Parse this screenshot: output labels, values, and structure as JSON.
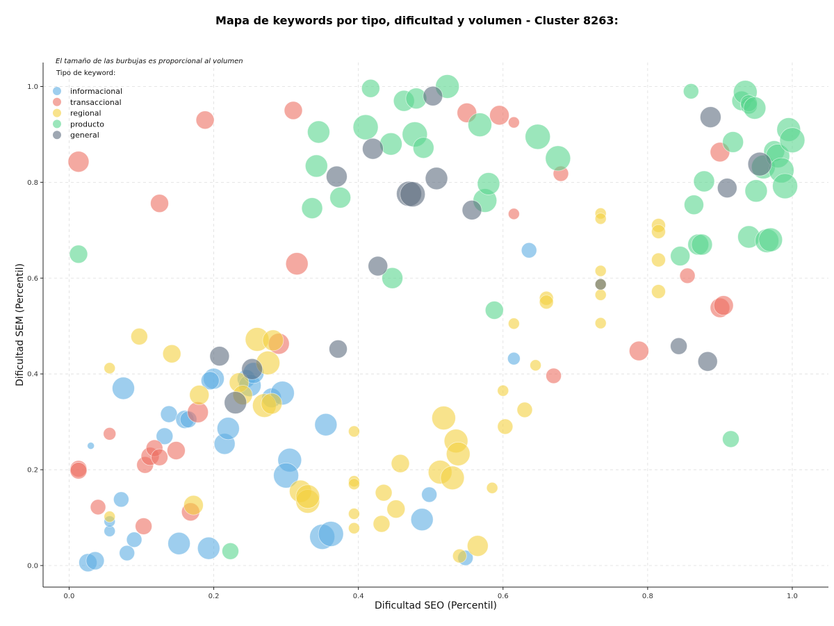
{
  "chart_data": {
    "type": "scatter",
    "title": "Mapa de keywords por tipo, dificultad y volumen - Cluster 8263:",
    "xlabel": "Dificultad SEO (Percentil)",
    "ylabel": "Dificultad SEM (Percentil)",
    "xlim": [
      -0.036,
      1.05
    ],
    "ylim": [
      -0.045,
      1.05
    ],
    "x_ticks": [
      0.0,
      0.2,
      0.4,
      0.6,
      0.8,
      1.0
    ],
    "y_ticks": [
      0.0,
      0.2,
      0.4,
      0.6,
      0.8,
      1.0
    ],
    "x_tick_labels": [
      "0.0",
      "0.2",
      "0.4",
      "0.6",
      "0.8",
      "1.0"
    ],
    "y_tick_labels": [
      "0.0",
      "0.2",
      "0.4",
      "0.6",
      "0.8",
      "1.0"
    ],
    "grid": true,
    "annotation": "El tamaño de las burbujas es proporcional al volumen",
    "legend_title": "Tipo de keyword:",
    "legend_position": "top-left",
    "series": [
      {
        "name": "informacional",
        "color": "#5DADE2",
        "points": [
          [
            0.03,
            0.25,
            5
          ],
          [
            0.075,
            0.37,
            16
          ],
          [
            0.072,
            0.138,
            11
          ],
          [
            0.056,
            0.072,
            8
          ],
          [
            0.056,
            0.092,
            8
          ],
          [
            0.09,
            0.054,
            11
          ],
          [
            0.08,
            0.026,
            11
          ],
          [
            0.026,
            0.006,
            13
          ],
          [
            0.036,
            0.01,
            13
          ],
          [
            0.138,
            0.316,
            12
          ],
          [
            0.132,
            0.27,
            12
          ],
          [
            0.16,
            0.305,
            13
          ],
          [
            0.165,
            0.305,
            12
          ],
          [
            0.2,
            0.39,
            15
          ],
          [
            0.195,
            0.386,
            13
          ],
          [
            0.215,
            0.254,
            15
          ],
          [
            0.22,
            0.286,
            16
          ],
          [
            0.245,
            0.39,
            13
          ],
          [
            0.25,
            0.376,
            16
          ],
          [
            0.255,
            0.402,
            15
          ],
          [
            0.28,
            0.35,
            14
          ],
          [
            0.295,
            0.36,
            17
          ],
          [
            0.305,
            0.22,
            17
          ],
          [
            0.3,
            0.188,
            18
          ],
          [
            0.355,
            0.294,
            16
          ],
          [
            0.35,
            0.06,
            18
          ],
          [
            0.362,
            0.066,
            18
          ],
          [
            0.152,
            0.046,
            16
          ],
          [
            0.193,
            0.036,
            16
          ],
          [
            0.488,
            0.096,
            16
          ],
          [
            0.498,
            0.148,
            11
          ],
          [
            0.548,
            0.016,
            11
          ],
          [
            0.615,
            0.432,
            9
          ],
          [
            0.636,
            0.658,
            11
          ]
        ]
      },
      {
        "name": "transaccional",
        "color": "#EC7063",
        "points": [
          [
            0.013,
            0.843,
            15
          ],
          [
            0.013,
            0.202,
            12
          ],
          [
            0.013,
            0.198,
            12
          ],
          [
            0.04,
            0.122,
            11
          ],
          [
            0.056,
            0.275,
            9
          ],
          [
            0.103,
            0.082,
            12
          ],
          [
            0.105,
            0.21,
            12
          ],
          [
            0.112,
            0.228,
            13
          ],
          [
            0.118,
            0.245,
            12
          ],
          [
            0.125,
            0.226,
            12
          ],
          [
            0.148,
            0.24,
            13
          ],
          [
            0.125,
            0.756,
            13
          ],
          [
            0.188,
            0.93,
            13
          ],
          [
            0.168,
            0.112,
            13
          ],
          [
            0.178,
            0.32,
            15
          ],
          [
            0.29,
            0.463,
            15
          ],
          [
            0.31,
            0.95,
            13
          ],
          [
            0.315,
            0.63,
            16
          ],
          [
            0.55,
            0.945,
            14
          ],
          [
            0.595,
            0.94,
            14
          ],
          [
            0.615,
            0.925,
            8
          ],
          [
            0.615,
            0.734,
            8
          ],
          [
            0.68,
            0.818,
            11
          ],
          [
            0.67,
            0.396,
            11
          ],
          [
            0.788,
            0.448,
            14
          ],
          [
            0.855,
            0.605,
            11
          ],
          [
            0.9,
            0.538,
            14
          ],
          [
            0.905,
            0.543,
            14
          ],
          [
            0.9,
            0.863,
            14
          ]
        ]
      },
      {
        "name": "regional",
        "color": "#F4D03F",
        "points": [
          [
            0.056,
            0.412,
            8
          ],
          [
            0.056,
            0.102,
            8
          ],
          [
            0.097,
            0.478,
            12
          ],
          [
            0.142,
            0.442,
            13
          ],
          [
            0.18,
            0.356,
            14
          ],
          [
            0.172,
            0.126,
            14
          ],
          [
            0.235,
            0.382,
            14
          ],
          [
            0.24,
            0.356,
            14
          ],
          [
            0.26,
            0.472,
            17
          ],
          [
            0.275,
            0.423,
            17
          ],
          [
            0.27,
            0.334,
            17
          ],
          [
            0.28,
            0.338,
            15
          ],
          [
            0.282,
            0.47,
            15
          ],
          [
            0.32,
            0.155,
            16
          ],
          [
            0.33,
            0.134,
            17
          ],
          [
            0.33,
            0.144,
            17
          ],
          [
            0.394,
            0.28,
            8
          ],
          [
            0.394,
            0.176,
            8
          ],
          [
            0.394,
            0.17,
            8
          ],
          [
            0.394,
            0.108,
            8
          ],
          [
            0.394,
            0.078,
            8
          ],
          [
            0.435,
            0.152,
            12
          ],
          [
            0.432,
            0.087,
            12
          ],
          [
            0.452,
            0.118,
            13
          ],
          [
            0.458,
            0.213,
            13
          ],
          [
            0.518,
            0.308,
            17
          ],
          [
            0.513,
            0.195,
            17
          ],
          [
            0.53,
            0.183,
            17
          ],
          [
            0.535,
            0.26,
            17
          ],
          [
            0.538,
            0.233,
            17
          ],
          [
            0.54,
            0.02,
            10
          ],
          [
            0.565,
            0.041,
            15
          ],
          [
            0.585,
            0.162,
            8
          ],
          [
            0.6,
            0.365,
            8
          ],
          [
            0.603,
            0.29,
            11
          ],
          [
            0.615,
            0.505,
            8
          ],
          [
            0.63,
            0.325,
            11
          ],
          [
            0.645,
            0.418,
            8
          ],
          [
            0.66,
            0.558,
            10
          ],
          [
            0.66,
            0.55,
            10
          ],
          [
            0.735,
            0.735,
            8
          ],
          [
            0.735,
            0.724,
            8
          ],
          [
            0.735,
            0.615,
            8
          ],
          [
            0.735,
            0.587,
            8
          ],
          [
            0.735,
            0.565,
            8
          ],
          [
            0.735,
            0.506,
            8
          ],
          [
            0.815,
            0.71,
            10
          ],
          [
            0.815,
            0.697,
            10
          ],
          [
            0.815,
            0.638,
            10
          ],
          [
            0.815,
            0.572,
            10
          ]
        ]
      },
      {
        "name": "producto",
        "color": "#58D68D",
        "points": [
          [
            0.013,
            0.65,
            13
          ],
          [
            0.223,
            0.03,
            12
          ],
          [
            0.336,
            0.746,
            15
          ],
          [
            0.342,
            0.834,
            16
          ],
          [
            0.345,
            0.905,
            16
          ],
          [
            0.375,
            0.768,
            15
          ],
          [
            0.41,
            0.915,
            18
          ],
          [
            0.417,
            0.996,
            13
          ],
          [
            0.445,
            0.88,
            16
          ],
          [
            0.447,
            0.6,
            15
          ],
          [
            0.463,
            0.97,
            15
          ],
          [
            0.48,
            0.975,
            15
          ],
          [
            0.478,
            0.9,
            18
          ],
          [
            0.49,
            0.872,
            15
          ],
          [
            0.523,
            1.0,
            17
          ],
          [
            0.568,
            0.92,
            17
          ],
          [
            0.575,
            0.762,
            17
          ],
          [
            0.58,
            0.797,
            16
          ],
          [
            0.588,
            0.533,
            13
          ],
          [
            0.648,
            0.895,
            18
          ],
          [
            0.676,
            0.85,
            18
          ],
          [
            0.845,
            0.646,
            14
          ],
          [
            0.86,
            0.99,
            11
          ],
          [
            0.864,
            0.753,
            14
          ],
          [
            0.87,
            0.67,
            15
          ],
          [
            0.875,
            0.67,
            15
          ],
          [
            0.878,
            0.802,
            15
          ],
          [
            0.915,
            0.264,
            12
          ],
          [
            0.918,
            0.884,
            15
          ],
          [
            0.93,
            0.97,
            14
          ],
          [
            0.935,
            0.988,
            17
          ],
          [
            0.94,
            0.686,
            16
          ],
          [
            0.94,
            0.96,
            12
          ],
          [
            0.94,
            0.965,
            12
          ],
          [
            0.948,
            0.955,
            16
          ],
          [
            0.95,
            0.782,
            16
          ],
          [
            0.96,
            0.832,
            17
          ],
          [
            0.965,
            0.678,
            17
          ],
          [
            0.97,
            0.68,
            17
          ],
          [
            0.975,
            0.865,
            15
          ],
          [
            0.98,
            0.855,
            17
          ],
          [
            0.985,
            0.825,
            18
          ],
          [
            0.99,
            0.792,
            18
          ],
          [
            0.995,
            0.91,
            17
          ],
          [
            1.0,
            0.888,
            18
          ]
        ]
      },
      {
        "name": "general",
        "color": "#5D6D7E",
        "points": [
          [
            0.208,
            0.437,
            14
          ],
          [
            0.23,
            0.34,
            16
          ],
          [
            0.253,
            0.41,
            15
          ],
          [
            0.37,
            0.812,
            15
          ],
          [
            0.372,
            0.452,
            13
          ],
          [
            0.42,
            0.87,
            15
          ],
          [
            0.427,
            0.625,
            14
          ],
          [
            0.47,
            0.776,
            18
          ],
          [
            0.475,
            0.775,
            18
          ],
          [
            0.503,
            0.98,
            14
          ],
          [
            0.508,
            0.808,
            16
          ],
          [
            0.557,
            0.742,
            14
          ],
          [
            0.735,
            0.587,
            8
          ],
          [
            0.843,
            0.458,
            12
          ],
          [
            0.883,
            0.426,
            14
          ],
          [
            0.887,
            0.936,
            15
          ],
          [
            0.91,
            0.788,
            14
          ],
          [
            0.955,
            0.838,
            17
          ]
        ]
      }
    ]
  }
}
